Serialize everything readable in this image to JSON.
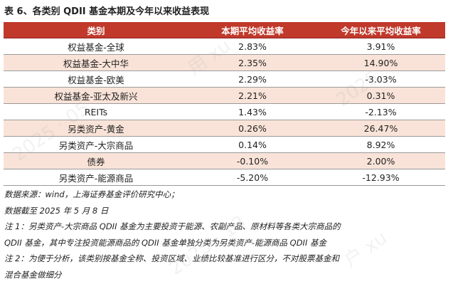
{
  "title": "表 6、各类别 QDII 基金本期及今年以来收益表现",
  "table": {
    "headers": [
      "类别",
      "本期平均收益率",
      "今年以来平均收益率"
    ],
    "rows": [
      {
        "category": "权益基金-全球",
        "period": "2.83%",
        "ytd": "3.91%"
      },
      {
        "category": "权益基金-大中华",
        "period": "2.35%",
        "ytd": "14.90%"
      },
      {
        "category": "权益基金-欧美",
        "period": "2.29%",
        "ytd": "-3.03%"
      },
      {
        "category": "权益基金-亚太及新兴",
        "period": "2.21%",
        "ytd": "0.31%"
      },
      {
        "category": "REITs",
        "period": "1.43%",
        "ytd": "-2.13%"
      },
      {
        "category": "另类资产-黄金",
        "period": "0.26%",
        "ytd": "26.47%"
      },
      {
        "category": "另类资产-大宗商品",
        "period": "0.14%",
        "ytd": "8.92%"
      },
      {
        "category": "债券",
        "period": "-0.10%",
        "ytd": "2.00%"
      },
      {
        "category": "另类资产-能源商品",
        "period": "-5.20%",
        "ytd": "-12.93%"
      }
    ]
  },
  "notes": {
    "source": "数据来源：wind，上海证券基金评价研究中心；",
    "cutoff": "数据截至 2025 年 5 月 8 日",
    "note1_line1": "注 1：另类资产-大宗商品 QDII 基金为主要投资于能源、农副产品、原材料等各类大宗商品的",
    "note1_line2": "QDII 基金，其中专注投资能源商品的 QDII 基金单独分类为另类资产-能源商品 QDII 基金",
    "note2_line1": "注 2：为便于分析，该类别按基金全称、投资区域、业绩比较基准进行区分，不对股票基金和",
    "note2_line2": "混合基金做细分"
  },
  "colors": {
    "header_bg": "#c0392b",
    "row_shade": "#f9e3d8"
  }
}
